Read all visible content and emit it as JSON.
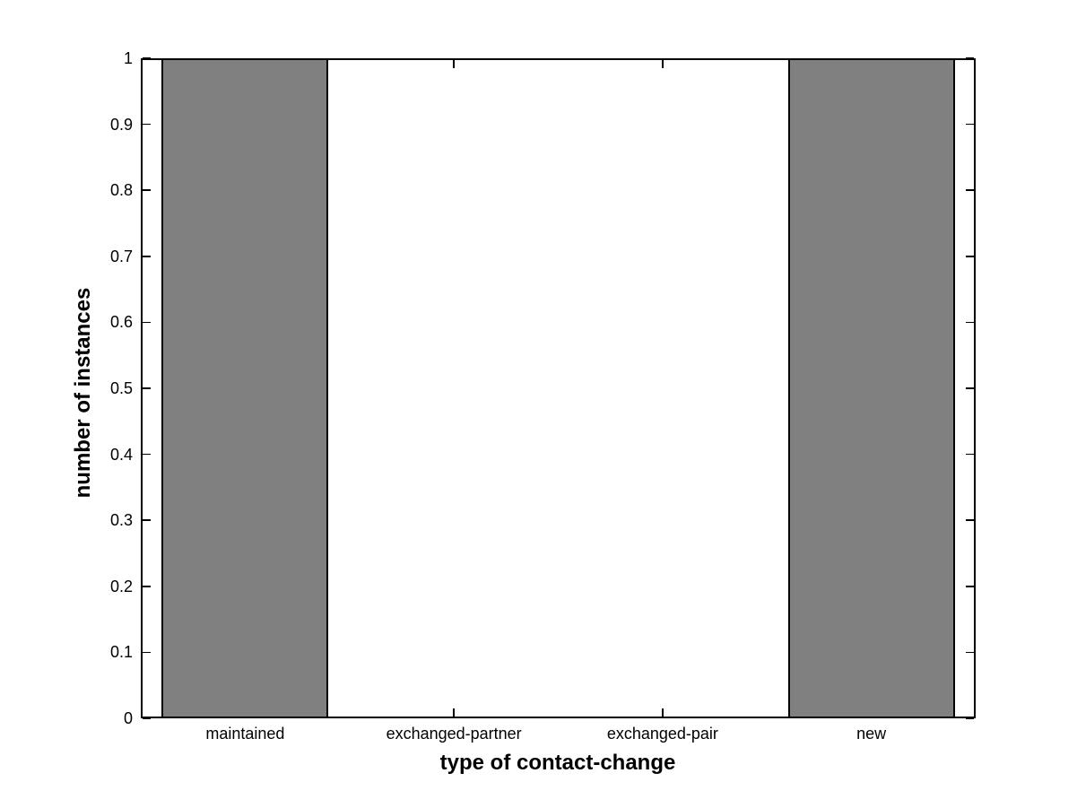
{
  "chart_data": {
    "type": "bar",
    "title": "",
    "xlabel": "type of contact-change",
    "ylabel": "number of instances",
    "categories": [
      "maintained",
      "exchanged-partner",
      "exchanged-pair",
      "new"
    ],
    "values": [
      1,
      0,
      0,
      1
    ],
    "xlim": [
      0.5,
      4.5
    ],
    "ylim": [
      0,
      1
    ],
    "ytick_labels": [
      "0",
      "0.1",
      "0.2",
      "0.3",
      "0.4",
      "0.5",
      "0.6",
      "0.7",
      "0.8",
      "0.9",
      "1"
    ],
    "ytick_values": [
      0,
      0.1,
      0.2,
      0.3,
      0.4,
      0.5,
      0.6,
      0.7,
      0.8,
      0.9,
      1
    ],
    "bar_width_fraction": 0.8,
    "bar_fill_color": "#808080",
    "bar_edge_color": "#000000",
    "axis_color": "#000000",
    "background_color": "#ffffff",
    "grid": false,
    "box": true,
    "tick_direction": "in",
    "legend": ""
  }
}
